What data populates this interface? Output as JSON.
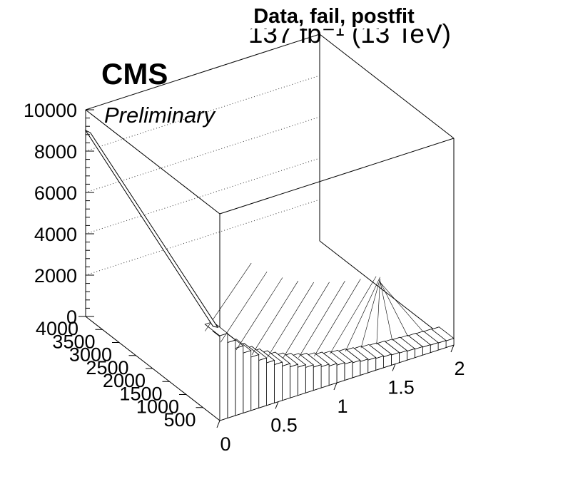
{
  "chart_data": {
    "type": "bar",
    "title": "Data, fail, postfit",
    "lumi_label": "137 fb⁻¹ (13 TeV)",
    "experiment": "CMS",
    "status": "Preliminary",
    "zlim": [
      0,
      10000
    ],
    "z_ticks": [
      "0",
      "2000",
      "4000",
      "6000",
      "8000",
      "10000"
    ],
    "x_ticks": [
      "0",
      "0.5",
      "1",
      "1.5",
      "2"
    ],
    "y_ticks": [
      "500",
      "1000",
      "1500",
      "2000",
      "2500",
      "3000",
      "3500",
      "4000"
    ],
    "front_row": {
      "x_range": [
        0,
        2
      ],
      "values": [
        4100,
        3650,
        3250,
        2900,
        2580,
        2300,
        2060,
        1850,
        1660,
        1500,
        1360,
        1230,
        1120,
        1020,
        930,
        850,
        780,
        720,
        660,
        610,
        565,
        525,
        490,
        460,
        430,
        405,
        380,
        360,
        340,
        320
      ]
    },
    "back_corner_value": 9000,
    "grid": true
  }
}
